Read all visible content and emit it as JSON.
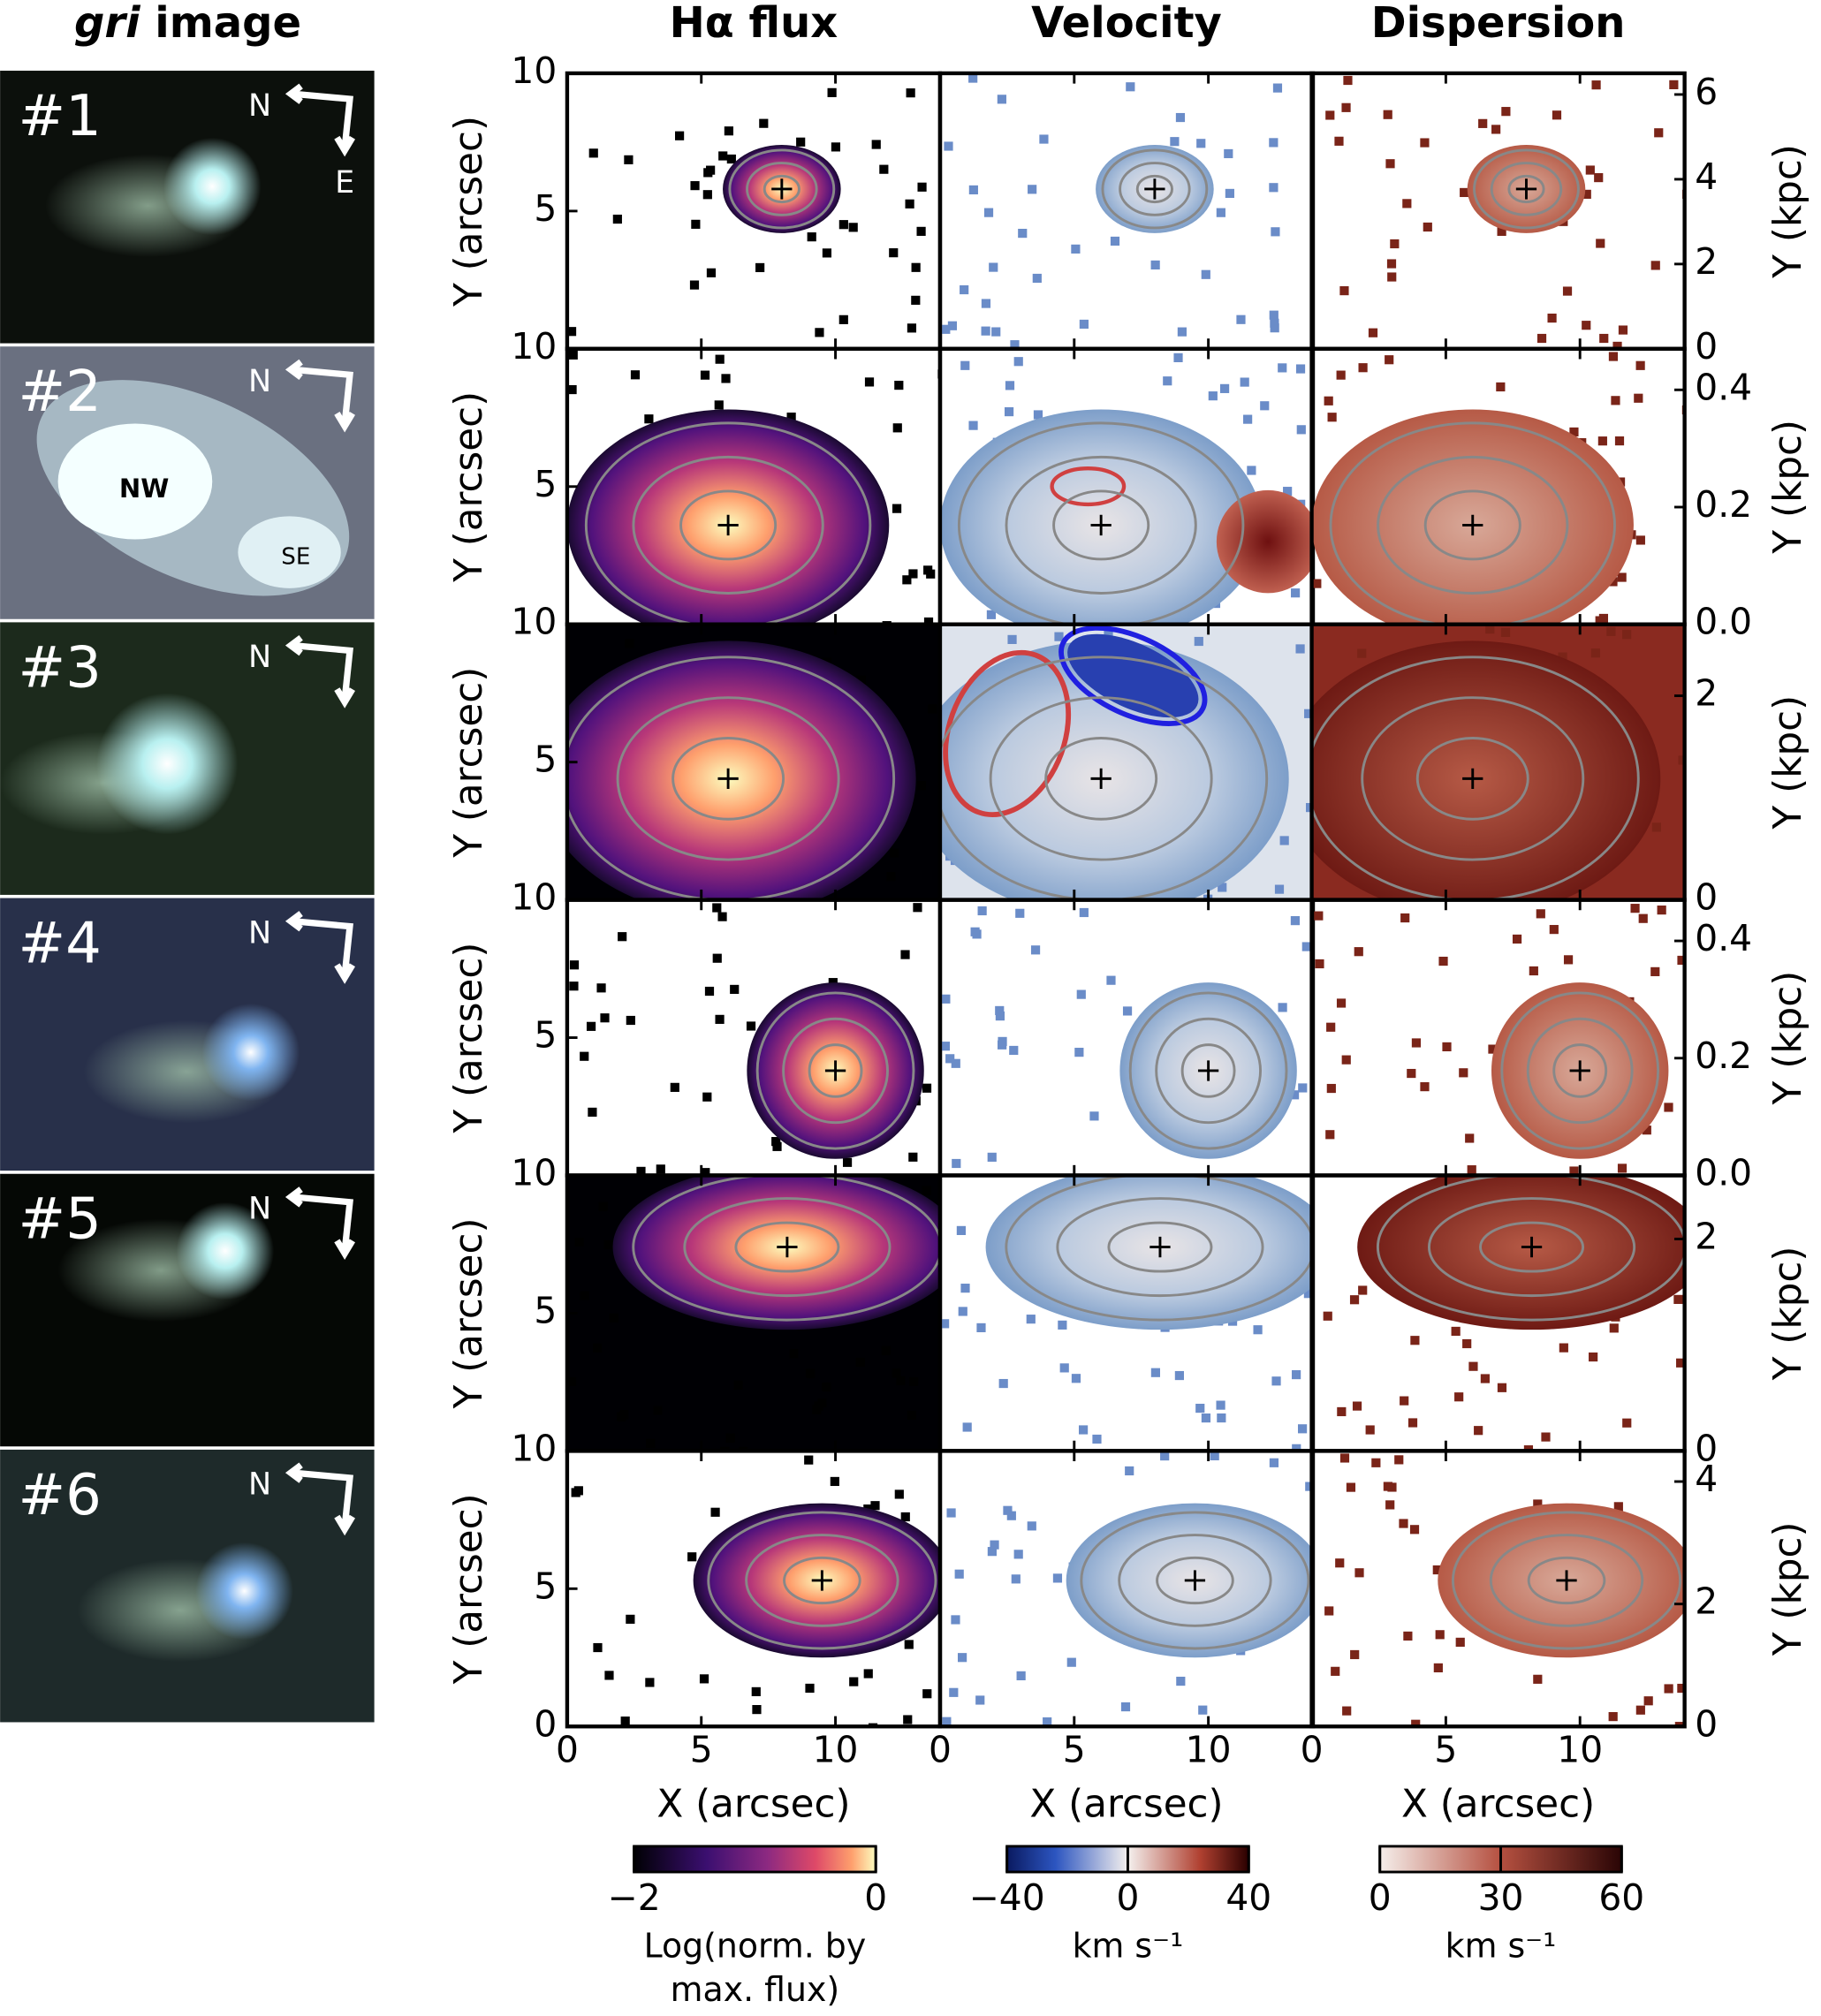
{
  "figure": {
    "image_title": [
      "gri",
      "image"
    ],
    "columns": [
      "Hα flux",
      "Velocity",
      "Dispersion"
    ],
    "x_label": "X (arcsec)",
    "y_label": "Y (arcsec)",
    "y2_label": "Y (kpc)",
    "xlim": [
      0,
      13.9
    ],
    "xticks": [
      0,
      5,
      10
    ],
    "ylim": [
      0,
      10
    ],
    "annotations": [
      "NW",
      "SE"
    ],
    "rows": [
      {
        "label": "#1",
        "compass": [
          "N",
          "E"
        ],
        "yticks": [
          5,
          10
        ],
        "y2lim": [
          0,
          6.5
        ],
        "y2ticks": [
          0,
          2,
          4,
          6
        ]
      },
      {
        "label": "#2",
        "compass": [
          "N"
        ],
        "yticks": [
          5,
          10
        ],
        "y2lim": [
          0,
          0.47
        ],
        "y2ticks": [
          {
            "value": 0,
            "label": "0.0"
          },
          {
            "value": 0.2,
            "label": "0.2"
          },
          {
            "value": 0.4,
            "label": "0.4"
          }
        ]
      },
      {
        "label": "#3",
        "compass": [
          "N"
        ],
        "yticks": [
          5,
          10
        ],
        "y2lim": [
          0,
          2.7
        ],
        "y2ticks": [
          0,
          2
        ]
      },
      {
        "label": "#4",
        "compass": [
          "N"
        ],
        "yticks": [
          5,
          10
        ],
        "y2lim": [
          0,
          0.47
        ],
        "y2ticks": [
          {
            "value": 0,
            "label": "0.0"
          },
          {
            "value": 0.2,
            "label": "0.2"
          },
          {
            "value": 0.4,
            "label": "0.4"
          }
        ]
      },
      {
        "label": "#5",
        "compass": [
          "N"
        ],
        "yticks": [
          5,
          10
        ],
        "y2lim": [
          0,
          2.6
        ],
        "y2ticks": [
          0,
          2
        ]
      },
      {
        "label": "#6",
        "compass": [
          "N"
        ],
        "yticks": [
          0,
          5,
          10
        ],
        "y2lim": [
          0,
          4.5
        ],
        "y2ticks": [
          0,
          2,
          4
        ]
      }
    ],
    "colorbars": [
      {
        "lim": [
          -2,
          0
        ],
        "ticks": [
          {
            "value": -2,
            "label": "−2"
          },
          0
        ],
        "label": [
          "Log(norm. by",
          "max. flux)"
        ]
      },
      {
        "lim": [
          -40,
          40
        ],
        "ticks": [
          {
            "value": -40,
            "label": "−40"
          },
          0,
          40
        ],
        "label": [
          "km s⁻¹"
        ]
      },
      {
        "lim": [
          0,
          60
        ],
        "ticks": [
          0,
          30,
          60
        ],
        "label": [
          "km s⁻¹"
        ]
      }
    ]
  }
}
